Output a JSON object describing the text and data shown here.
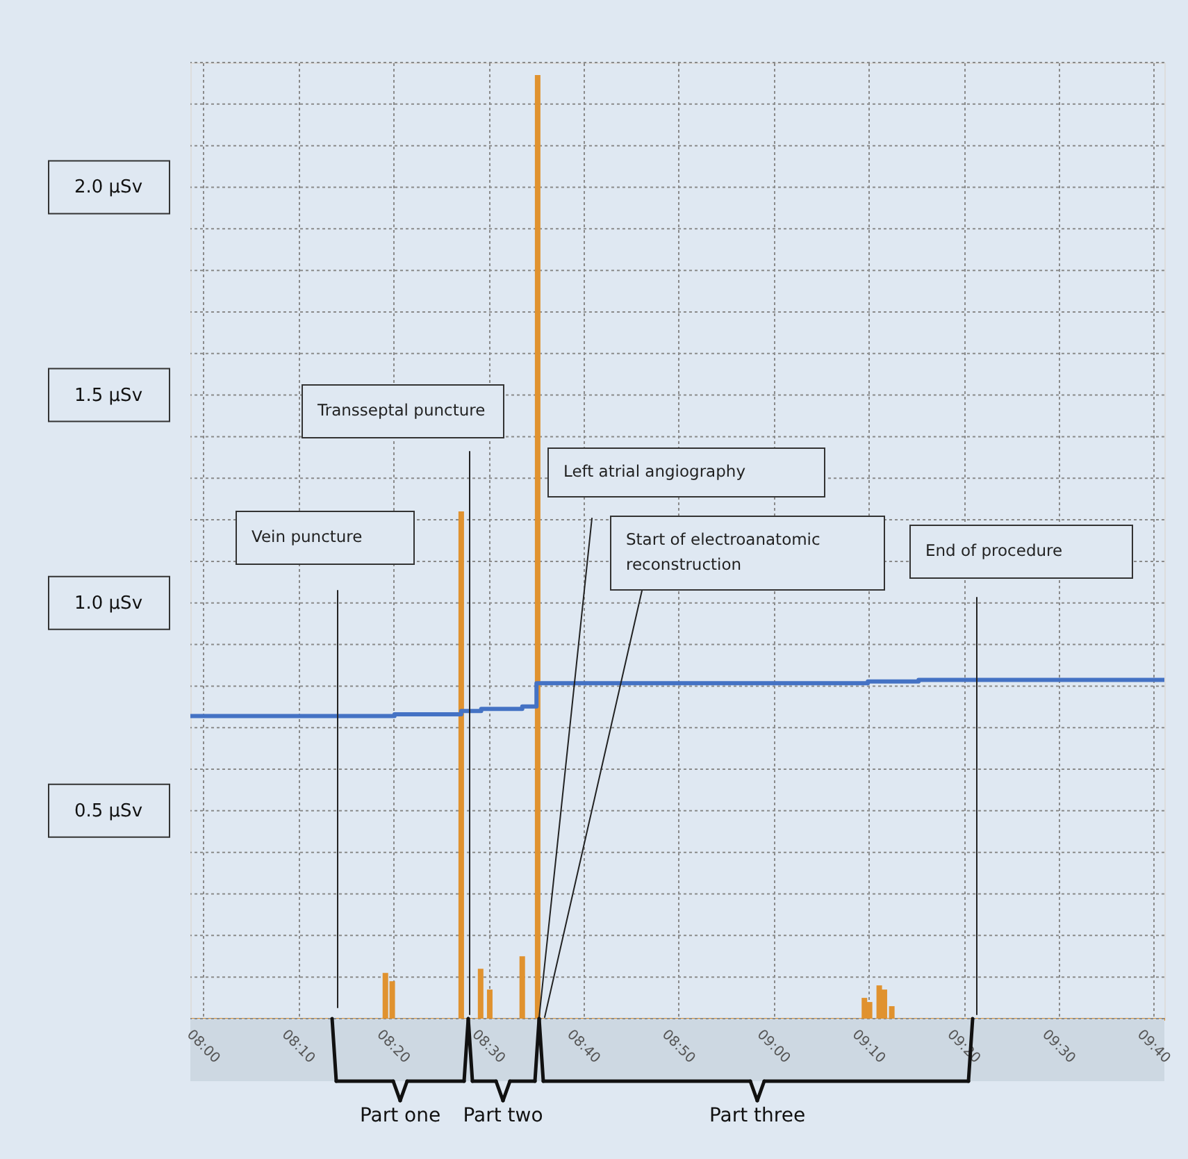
{
  "chart_data": {
    "type": "bar",
    "xlim": [
      7.977,
      9.685
    ],
    "xticks": [
      {
        "value": 8,
        "label": "08:00"
      },
      {
        "value": 8.1667,
        "label": "08:10"
      },
      {
        "value": 8.3333,
        "label": "08:20"
      },
      {
        "value": 8.5,
        "label": "08:30"
      },
      {
        "value": 8.6667,
        "label": "08:40"
      },
      {
        "value": 8.8333,
        "label": "08:50"
      },
      {
        "value": 9,
        "label": "09:00"
      },
      {
        "value": 9.1667,
        "label": "09:10"
      },
      {
        "value": 9.3333,
        "label": "09:20"
      },
      {
        "value": 9.5,
        "label": "09:30"
      },
      {
        "value": 9.6667,
        "label": "09:40"
      }
    ],
    "ylim": [
      0,
      2.3
    ],
    "yticks": [
      {
        "value": 0,
        "label": null
      },
      {
        "value": 0.1,
        "label": null
      },
      {
        "value": 0.2,
        "label": null
      },
      {
        "value": 0.3,
        "label": null
      },
      {
        "value": 0.4,
        "label": null
      },
      {
        "value": 0.5,
        "label": "0.5 µSv"
      },
      {
        "value": 0.6,
        "label": null
      },
      {
        "value": 0.7,
        "label": null
      },
      {
        "value": 0.8,
        "label": null
      },
      {
        "value": 0.9,
        "label": null
      },
      {
        "value": 1.0,
        "label": "1.0 µSv"
      },
      {
        "value": 1.1,
        "label": null
      },
      {
        "value": 1.2,
        "label": null
      },
      {
        "value": 1.3,
        "label": null
      },
      {
        "value": 1.4,
        "label": null
      },
      {
        "value": 1.5,
        "label": "1.5 µSv"
      },
      {
        "value": 1.6,
        "label": null
      },
      {
        "value": 1.7,
        "label": null
      },
      {
        "value": 1.8,
        "label": null
      },
      {
        "value": 1.9,
        "label": null
      },
      {
        "value": 2.0,
        "label": "2.0 µSv"
      },
      {
        "value": 2.1,
        "label": null
      },
      {
        "value": 2.2,
        "label": null
      },
      {
        "value": 2.3,
        "label": null
      }
    ],
    "grid": true,
    "series": [
      {
        "color": "#e0922f",
        "x": [
          8.319,
          8.331,
          8.452,
          8.486,
          8.502,
          8.559,
          8.586,
          9.159,
          9.168,
          9.185,
          9.194,
          9.207
        ],
        "values": [
          0.11,
          0.09,
          1.22,
          0.12,
          0.07,
          0.15,
          2.27,
          0.05,
          0.04,
          0.08,
          0.07,
          0.03
        ]
      },
      {
        "type": "step",
        "color": "#4472c4",
        "x": [
          7.977,
          8.335,
          8.452,
          8.487,
          8.559,
          8.584,
          9.165,
          9.254,
          9.685
        ],
        "values": [
          0.728,
          0.732,
          0.74,
          0.745,
          0.751,
          0.807,
          0.811,
          0.815,
          0.815
        ]
      }
    ],
    "annotations": [
      "Vein puncture",
      "Transseptal puncture",
      "Left atrial angiography",
      "Start of electroanatomic reconstruction",
      "End of procedure",
      "Part one",
      "Part two",
      "Part three"
    ]
  }
}
